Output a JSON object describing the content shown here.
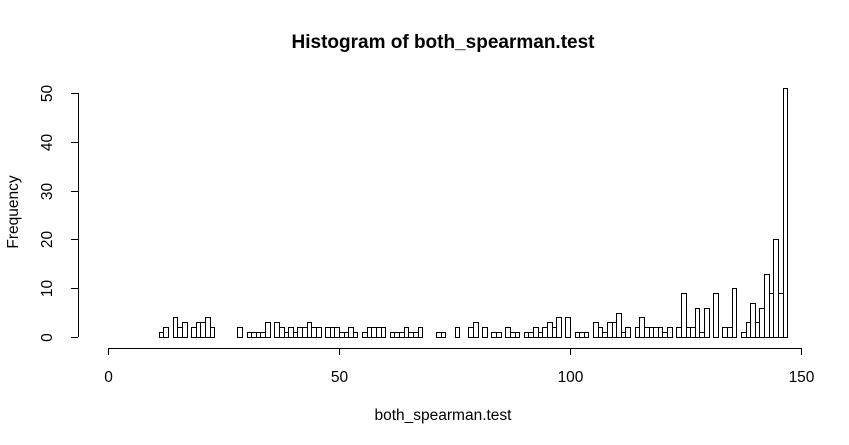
{
  "chart_data": {
    "type": "bar",
    "title": "Histogram of both_spearman.test",
    "xlabel": "both_spearman.test",
    "ylabel": "Frequency",
    "xlim": [
      0,
      150
    ],
    "ylim": [
      0,
      50
    ],
    "bin_width": 1,
    "bin_start": 0,
    "x_ticks": [
      0,
      50,
      100,
      150
    ],
    "y_ticks": [
      0,
      10,
      20,
      30,
      40,
      50
    ],
    "values": [
      0,
      0,
      0,
      0,
      0,
      0,
      0,
      0,
      0,
      0,
      0,
      1,
      2,
      0,
      4,
      2,
      3,
      0,
      2,
      3,
      3,
      4,
      2,
      0,
      0,
      0,
      0,
      0,
      2,
      0,
      1,
      1,
      1,
      1,
      3,
      0,
      3,
      2,
      1,
      2,
      1,
      2,
      2,
      3,
      2,
      2,
      0,
      2,
      2,
      2,
      1,
      1,
      2,
      1,
      0,
      1,
      2,
      2,
      2,
      2,
      0,
      1,
      1,
      1,
      2,
      1,
      1,
      2,
      0,
      0,
      0,
      1,
      1,
      0,
      0,
      2,
      0,
      0,
      2,
      3,
      0,
      2,
      0,
      1,
      1,
      0,
      2,
      1,
      1,
      0,
      1,
      1,
      2,
      1,
      2,
      3,
      2,
      4,
      0,
      4,
      0,
      1,
      1,
      1,
      0,
      3,
      2,
      1,
      3,
      3,
      5,
      1,
      2,
      0,
      2,
      4,
      2,
      2,
      2,
      2,
      1,
      2,
      0,
      2,
      9,
      2,
      2,
      6,
      1,
      6,
      0,
      9,
      0,
      2,
      2,
      10,
      0,
      1,
      3,
      7,
      3,
      6,
      13,
      9,
      20,
      9,
      51,
      0,
      0,
      0
    ]
  }
}
